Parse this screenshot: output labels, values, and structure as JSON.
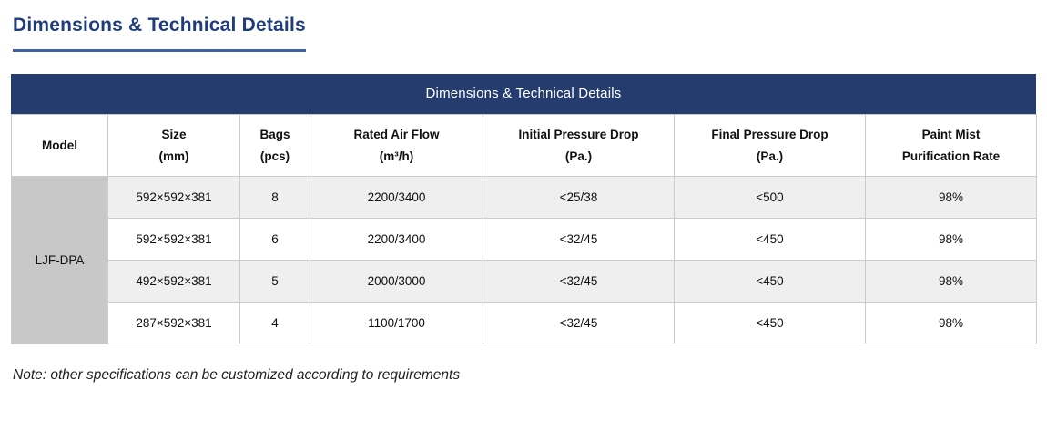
{
  "page": {
    "title": "Dimensions & Technical Details",
    "note": "Note: other specifications can be customized according to requirements"
  },
  "table": {
    "banner_title": "Dimensions & Technical Details",
    "columns": [
      {
        "line1": "Model",
        "line2": ""
      },
      {
        "line1": "Size",
        "line2": "(mm)"
      },
      {
        "line1": "Bags",
        "line2": "(pcs)"
      },
      {
        "line1": "Rated Air Flow",
        "line2": "(m³/h)"
      },
      {
        "line1": "Initial Pressure Drop",
        "line2": "(Pa.)"
      },
      {
        "line1": "Final Pressure Drop",
        "line2": "(Pa.)"
      },
      {
        "line1": "Paint Mist",
        "line2": "Purification Rate"
      }
    ],
    "model_label": "LJF-DPA",
    "rows": [
      {
        "size": "592×592×381",
        "bags": "8",
        "rated_air_flow": "2200/3400",
        "initial_pressure_drop": "<25/38",
        "final_pressure_drop": "<500",
        "purification_rate": "98%"
      },
      {
        "size": "592×592×381",
        "bags": "6",
        "rated_air_flow": "2200/3400",
        "initial_pressure_drop": "<32/45",
        "final_pressure_drop": "<450",
        "purification_rate": "98%"
      },
      {
        "size": "492×592×381",
        "bags": "5",
        "rated_air_flow": "2000/3000",
        "initial_pressure_drop": "<32/45",
        "final_pressure_drop": "<450",
        "purification_rate": "98%"
      },
      {
        "size": "287×592×381",
        "bags": "4",
        "rated_air_flow": "1100/1700",
        "initial_pressure_drop": "<32/45",
        "final_pressure_drop": "<450",
        "purification_rate": "98%"
      }
    ]
  },
  "colors": {
    "navy_header": "#253c6e",
    "title_blue": "#1f3d7a",
    "title_underline": "#3e61a2",
    "model_cell_gray": "#c8c8c8",
    "alt_row_gray": "#efefef",
    "border_gray": "#cccccc"
  }
}
